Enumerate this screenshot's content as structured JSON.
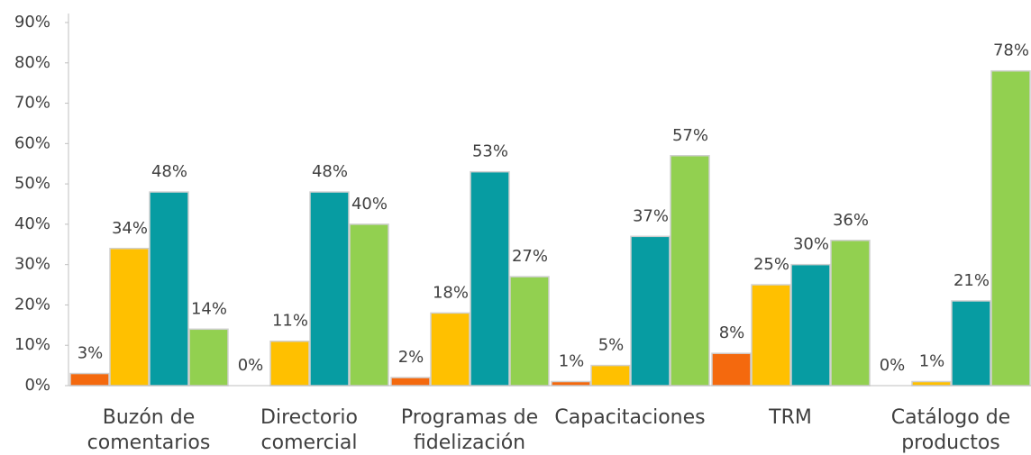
{
  "chart_data": {
    "type": "bar",
    "categories": [
      "Buzón de comentarios",
      "Directorio comercial",
      "Programas de fidelización",
      "Capacitaciones",
      "TRM",
      "Catálogo de productos"
    ],
    "series": [
      {
        "color": "#f4690e",
        "values": [
          3,
          0,
          2,
          1,
          8,
          0
        ],
        "value_labels": [
          "3%",
          "0%",
          "2%",
          "1%",
          "8%",
          "0%"
        ]
      },
      {
        "color": "#ffc000",
        "values": [
          34,
          11,
          18,
          5,
          25,
          1
        ],
        "value_labels": [
          "34%",
          "11%",
          "18%",
          "5%",
          "25%",
          "1%"
        ]
      },
      {
        "color": "#079ca2",
        "values": [
          48,
          48,
          53,
          37,
          30,
          21
        ],
        "value_labels": [
          "48%",
          "48%",
          "53%",
          "37%",
          "30%",
          "21%"
        ]
      },
      {
        "color": "#92d050",
        "values": [
          14,
          40,
          27,
          57,
          36,
          78
        ],
        "value_labels": [
          "14%",
          "40%",
          "27%",
          "57%",
          "36%",
          "78%"
        ]
      }
    ],
    "ylim": [
      0,
      90
    ],
    "yticks": [
      {
        "value": 0,
        "label": "0%"
      },
      {
        "value": 10,
        "label": "10%"
      },
      {
        "value": 20,
        "label": "20%"
      },
      {
        "value": 30,
        "label": "30%"
      },
      {
        "value": 40,
        "label": "40%"
      },
      {
        "value": 50,
        "label": "50%"
      },
      {
        "value": 60,
        "label": "60%"
      },
      {
        "value": 70,
        "label": "70%"
      },
      {
        "value": 80,
        "label": "80%"
      },
      {
        "value": 90,
        "label": "90%"
      }
    ],
    "grid": false
  }
}
